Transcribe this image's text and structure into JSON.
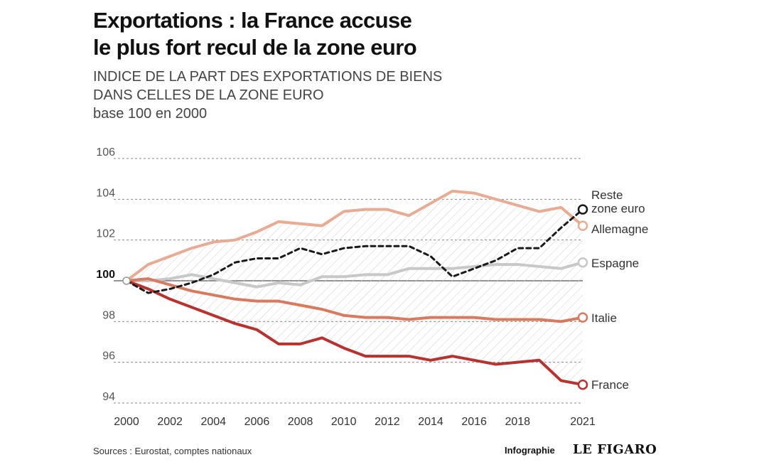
{
  "title_lines": [
    "Exportations : la France accuse",
    "le plus fort recul de la zone euro"
  ],
  "subtitle_lines": [
    "INDICE DE LA PART DES EXPORTATIONS DE BIENS",
    "DANS CELLES DE LA ZONE EURO",
    "base 100 en 2000"
  ],
  "footer": {
    "sources": "Sources : Eurostat, comptes nationaux",
    "credit": "Infographie",
    "brand": "LE FIGARO"
  },
  "colors": {
    "allemagne": "#e8ab94",
    "reste": "#1a1a1a",
    "espagne": "#c8c8c8",
    "italie": "#d97a5e",
    "france": "#b8322f",
    "grid": "#888888",
    "hatch": "#cfcfcf"
  },
  "chart_data": {
    "type": "line",
    "x_ticks": [
      2000,
      2002,
      2004,
      2006,
      2008,
      2010,
      2012,
      2014,
      2016,
      2018,
      2021
    ],
    "y_ticks": [
      94,
      96,
      98,
      100,
      102,
      104,
      106
    ],
    "xlim": [
      2000,
      2021
    ],
    "ylim": [
      94,
      106
    ],
    "grid": true,
    "x": [
      2000,
      2001,
      2002,
      2003,
      2004,
      2005,
      2006,
      2007,
      2008,
      2009,
      2010,
      2011,
      2012,
      2013,
      2014,
      2015,
      2016,
      2017,
      2018,
      2019,
      2020,
      2021
    ],
    "series": [
      {
        "name": "Allemagne",
        "key": "allemagne",
        "values": [
          100,
          100.8,
          101.2,
          101.6,
          101.9,
          102.0,
          102.4,
          102.9,
          102.8,
          102.7,
          103.4,
          103.5,
          103.5,
          103.2,
          103.8,
          104.4,
          104.3,
          104.0,
          103.7,
          103.4,
          103.6,
          102.7
        ],
        "style": "solid",
        "label_lines": [
          "Allemagne"
        ]
      },
      {
        "name": "Reste zone euro",
        "key": "reste",
        "values": [
          100,
          99.4,
          99.6,
          99.9,
          100.3,
          100.9,
          101.1,
          101.1,
          101.6,
          101.3,
          101.6,
          101.7,
          101.7,
          101.7,
          101.2,
          100.2,
          100.6,
          101.0,
          101.6,
          101.6,
          102.6,
          103.5
        ],
        "style": "dashed",
        "label_lines": [
          "Reste",
          "zone euro"
        ]
      },
      {
        "name": "Espagne",
        "key": "espagne",
        "values": [
          100,
          100.0,
          100.1,
          100.3,
          100.1,
          99.9,
          99.7,
          99.9,
          99.8,
          100.2,
          100.2,
          100.3,
          100.3,
          100.6,
          100.6,
          100.6,
          100.7,
          100.8,
          100.8,
          100.7,
          100.6,
          100.9
        ],
        "style": "solid",
        "label_lines": [
          "Espagne"
        ]
      },
      {
        "name": "Italie",
        "key": "italie",
        "values": [
          100,
          100.1,
          99.8,
          99.5,
          99.3,
          99.1,
          99.0,
          99.0,
          98.8,
          98.6,
          98.3,
          98.2,
          98.2,
          98.1,
          98.2,
          98.2,
          98.2,
          98.1,
          98.1,
          98.1,
          98.0,
          98.2
        ],
        "style": "solid",
        "label_lines": [
          "Italie"
        ]
      },
      {
        "name": "France",
        "key": "france",
        "values": [
          100,
          99.6,
          99.1,
          98.7,
          98.3,
          97.9,
          97.6,
          96.9,
          96.9,
          97.2,
          96.7,
          96.3,
          96.3,
          96.3,
          96.1,
          96.3,
          96.1,
          95.9,
          96.0,
          96.1,
          95.1,
          94.9
        ],
        "style": "solid",
        "label_lines": [
          "France"
        ]
      }
    ]
  }
}
